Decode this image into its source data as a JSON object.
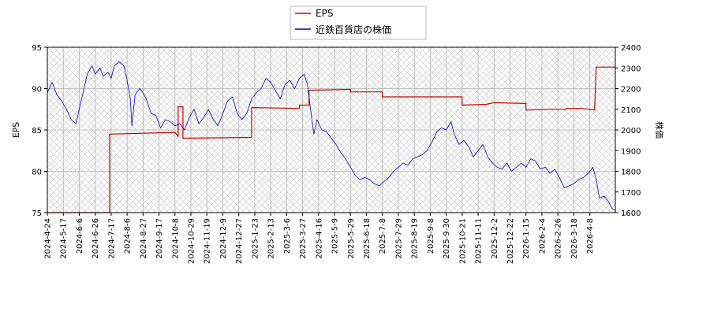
{
  "chart_data": {
    "type": "line",
    "legend": {
      "placement": "top-center",
      "entries": [
        "EPS",
        "近鉄百貨店の株価"
      ]
    },
    "grid": true,
    "background_pattern": "crosshatch",
    "x_ticks": [
      "2024-4-24",
      "2024-5-17",
      "2024-6-6",
      "2024-6-26",
      "2024-7-17",
      "2024-8-6",
      "2024-8-27",
      "2024-9-17",
      "2024-10-8",
      "2024-10-29",
      "2024-11-19",
      "2024-12-9",
      "2024-12-27",
      "2025-1-23",
      "2025-2-13",
      "2025-3-6",
      "2025-3-27",
      "2025-4-16",
      "2025-5-9",
      "2025-5-29",
      "2025-6-18",
      "2025-7-8",
      "2025-7-29",
      "2025-8-19",
      "2025-9-8",
      "2025-9-30",
      "2025-10-21",
      "2025-11-11",
      "2025-12-2",
      "2025-12-22",
      "2026-1-15",
      "2026-2-4",
      "2026-2-26",
      "2026-3-18",
      "2026-4-8"
    ],
    "x_range": [
      0,
      35.6
    ],
    "y_left": {
      "label": "EPS",
      "range": [
        75,
        95
      ],
      "ticks": [
        75,
        80,
        85,
        90,
        95
      ]
    },
    "y_right": {
      "label": "株価",
      "range": [
        1600,
        2400
      ],
      "ticks": [
        1600,
        1700,
        1800,
        1900,
        2000,
        2100,
        2200,
        2300,
        2400
      ]
    },
    "series": [
      {
        "name": "EPS",
        "axis": "left",
        "color": "#cc0000",
        "points": [
          [
            0,
            75.0
          ],
          [
            3.9,
            75.0
          ],
          [
            3.9,
            84.5
          ],
          [
            8.0,
            84.7
          ],
          [
            8.2,
            84.2
          ],
          [
            8.2,
            87.8
          ],
          [
            8.5,
            87.8
          ],
          [
            8.5,
            84.0
          ],
          [
            12.8,
            84.1
          ],
          [
            12.8,
            87.7
          ],
          [
            15.8,
            87.6
          ],
          [
            15.8,
            88.0
          ],
          [
            16.4,
            88.0
          ],
          [
            16.4,
            89.8
          ],
          [
            19.0,
            89.9
          ],
          [
            19.0,
            89.6
          ],
          [
            21.0,
            89.6
          ],
          [
            21.0,
            89.0
          ],
          [
            26.0,
            89.0
          ],
          [
            26.0,
            88.0
          ],
          [
            27.5,
            88.1
          ],
          [
            28.0,
            88.3
          ],
          [
            30.0,
            88.2
          ],
          [
            30.0,
            87.4
          ],
          [
            31.5,
            87.5
          ],
          [
            32.5,
            87.5
          ],
          [
            32.5,
            87.6
          ],
          [
            33.5,
            87.6
          ],
          [
            34.3,
            87.4
          ],
          [
            34.4,
            92.6
          ],
          [
            35.6,
            92.6
          ]
        ]
      },
      {
        "name": "近鉄百貨店の株価",
        "axis": "right",
        "color": "#0000cc",
        "points": [
          [
            0,
            2180
          ],
          [
            0.3,
            2230
          ],
          [
            0.6,
            2170
          ],
          [
            0.9,
            2140
          ],
          [
            1.2,
            2100
          ],
          [
            1.5,
            2050
          ],
          [
            1.8,
            2030
          ],
          [
            2.0,
            2100
          ],
          [
            2.3,
            2200
          ],
          [
            2.5,
            2270
          ],
          [
            2.8,
            2310
          ],
          [
            3.0,
            2270
          ],
          [
            3.3,
            2300
          ],
          [
            3.5,
            2260
          ],
          [
            3.8,
            2280
          ],
          [
            4.0,
            2250
          ],
          [
            4.2,
            2310
          ],
          [
            4.5,
            2330
          ],
          [
            4.8,
            2310
          ],
          [
            5.0,
            2240
          ],
          [
            5.2,
            2150
          ],
          [
            5.3,
            2020
          ],
          [
            5.5,
            2170
          ],
          [
            5.8,
            2200
          ],
          [
            6.0,
            2180
          ],
          [
            6.2,
            2150
          ],
          [
            6.5,
            2080
          ],
          [
            6.8,
            2070
          ],
          [
            7.1,
            2010
          ],
          [
            7.4,
            2050
          ],
          [
            7.7,
            2040
          ],
          [
            8.0,
            2020
          ],
          [
            8.3,
            2030
          ],
          [
            8.6,
            2000
          ],
          [
            8.9,
            2060
          ],
          [
            9.2,
            2100
          ],
          [
            9.5,
            2030
          ],
          [
            9.8,
            2060
          ],
          [
            10.1,
            2100
          ],
          [
            10.4,
            2050
          ],
          [
            10.7,
            2020
          ],
          [
            11.0,
            2080
          ],
          [
            11.3,
            2140
          ],
          [
            11.6,
            2160
          ],
          [
            11.9,
            2080
          ],
          [
            12.2,
            2050
          ],
          [
            12.5,
            2080
          ],
          [
            12.8,
            2150
          ],
          [
            13.1,
            2180
          ],
          [
            13.4,
            2200
          ],
          [
            13.7,
            2250
          ],
          [
            14.0,
            2230
          ],
          [
            14.3,
            2190
          ],
          [
            14.6,
            2150
          ],
          [
            14.9,
            2220
          ],
          [
            15.2,
            2240
          ],
          [
            15.5,
            2200
          ],
          [
            15.8,
            2250
          ],
          [
            16.1,
            2270
          ],
          [
            16.3,
            2220
          ],
          [
            16.5,
            2100
          ],
          [
            16.7,
            1980
          ],
          [
            16.9,
            2050
          ],
          [
            17.2,
            2000
          ],
          [
            17.5,
            1990
          ],
          [
            17.8,
            1960
          ],
          [
            18.1,
            1930
          ],
          [
            18.4,
            1890
          ],
          [
            18.7,
            1860
          ],
          [
            19.0,
            1820
          ],
          [
            19.3,
            1780
          ],
          [
            19.6,
            1760
          ],
          [
            19.9,
            1770
          ],
          [
            20.2,
            1760
          ],
          [
            20.5,
            1740
          ],
          [
            20.8,
            1730
          ],
          [
            21.1,
            1750
          ],
          [
            21.4,
            1770
          ],
          [
            21.7,
            1800
          ],
          [
            22.0,
            1820
          ],
          [
            22.3,
            1840
          ],
          [
            22.6,
            1830
          ],
          [
            22.9,
            1860
          ],
          [
            23.2,
            1870
          ],
          [
            23.5,
            1880
          ],
          [
            23.8,
            1900
          ],
          [
            24.1,
            1940
          ],
          [
            24.4,
            1990
          ],
          [
            24.7,
            2010
          ],
          [
            25.0,
            2000
          ],
          [
            25.3,
            2040
          ],
          [
            25.5,
            1980
          ],
          [
            25.8,
            1930
          ],
          [
            26.1,
            1950
          ],
          [
            26.4,
            1920
          ],
          [
            26.7,
            1870
          ],
          [
            27.0,
            1900
          ],
          [
            27.3,
            1930
          ],
          [
            27.6,
            1870
          ],
          [
            27.9,
            1840
          ],
          [
            28.2,
            1820
          ],
          [
            28.5,
            1810
          ],
          [
            28.8,
            1840
          ],
          [
            29.1,
            1800
          ],
          [
            29.4,
            1820
          ],
          [
            29.7,
            1840
          ],
          [
            30.0,
            1820
          ],
          [
            30.3,
            1860
          ],
          [
            30.6,
            1850
          ],
          [
            30.9,
            1810
          ],
          [
            31.2,
            1820
          ],
          [
            31.5,
            1790
          ],
          [
            31.8,
            1810
          ],
          [
            32.1,
            1770
          ],
          [
            32.4,
            1720
          ],
          [
            32.7,
            1730
          ],
          [
            33.0,
            1740
          ],
          [
            33.3,
            1760
          ],
          [
            33.6,
            1770
          ],
          [
            33.9,
            1790
          ],
          [
            34.2,
            1820
          ],
          [
            34.4,
            1760
          ],
          [
            34.6,
            1670
          ],
          [
            34.9,
            1680
          ],
          [
            35.2,
            1650
          ],
          [
            35.4,
            1620
          ],
          [
            35.6,
            1610
          ]
        ]
      }
    ]
  }
}
